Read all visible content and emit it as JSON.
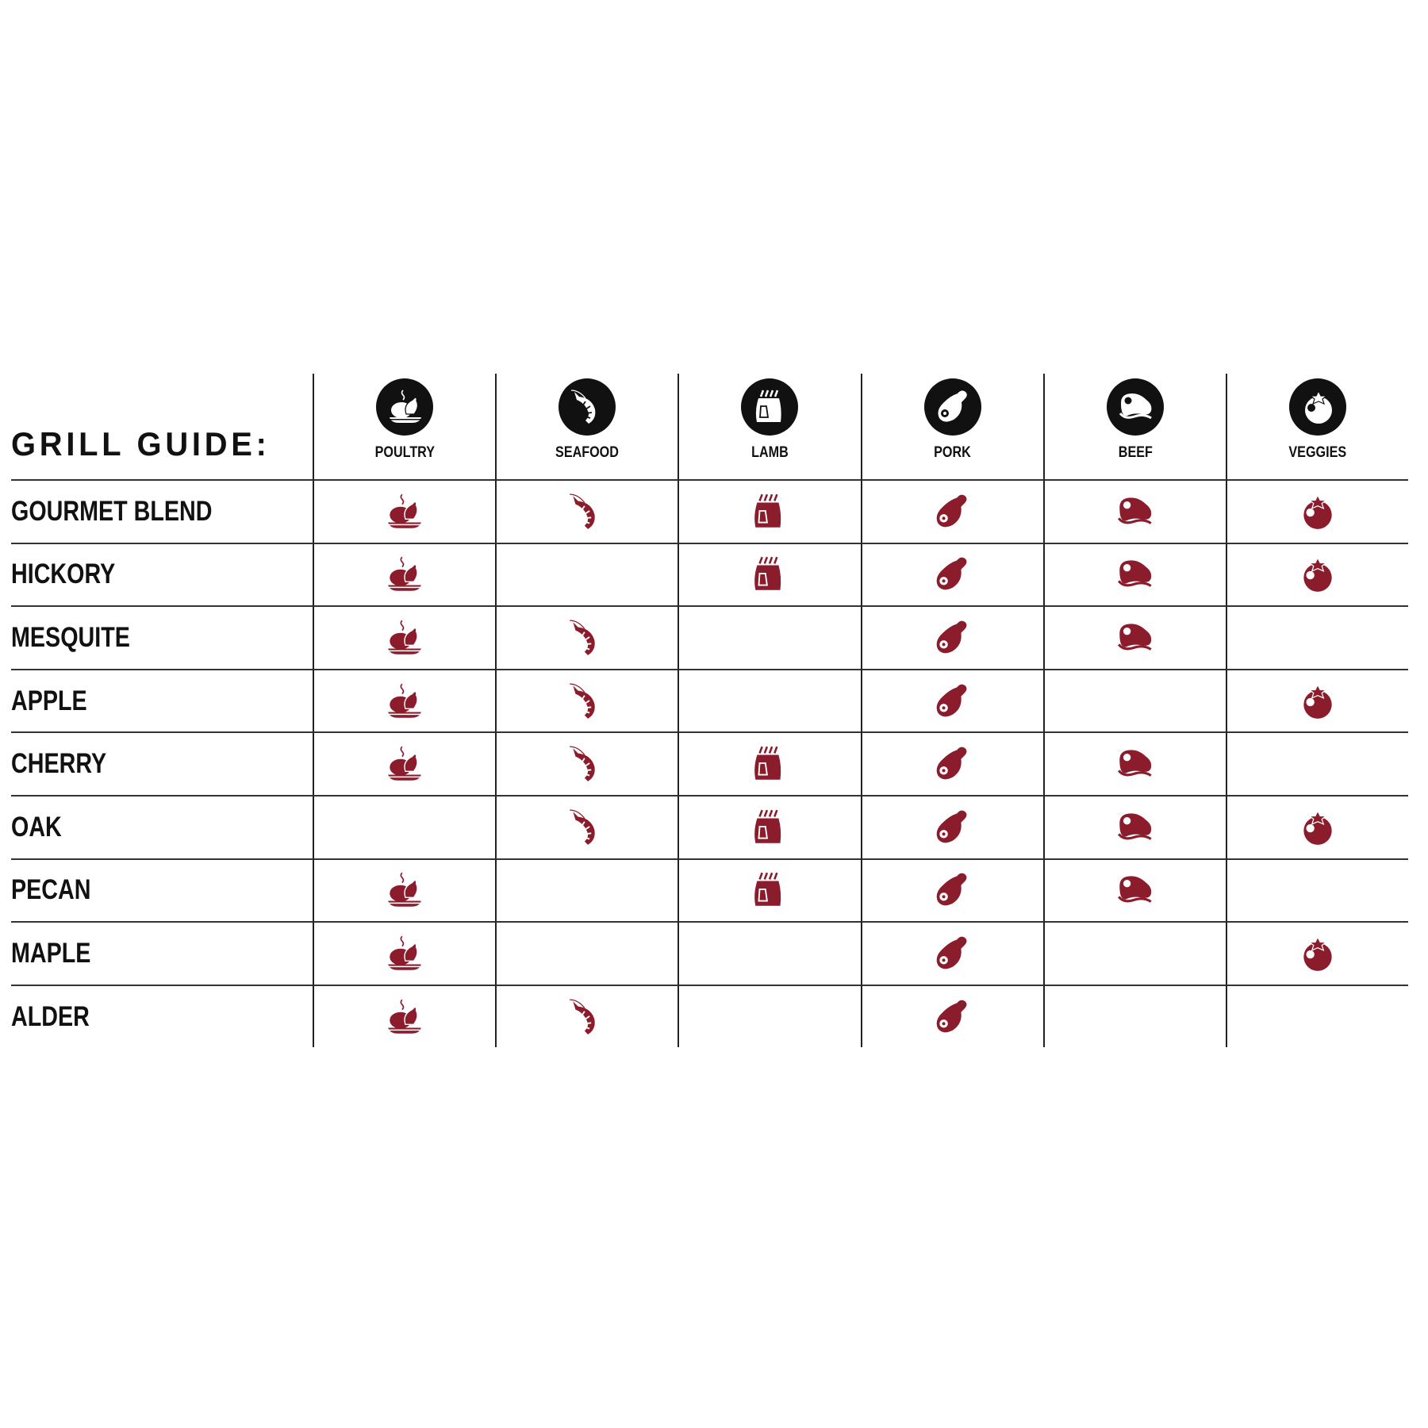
{
  "title": "GRILL GUIDE:",
  "accent_color": "#8b1c2c",
  "header_icon_color": "#111111",
  "columns": [
    {
      "label": "POULTRY",
      "icon": "roast-chicken-icon"
    },
    {
      "label": "SEAFOOD",
      "icon": "shrimp-icon"
    },
    {
      "label": "LAMB",
      "icon": "lamb-rack-icon"
    },
    {
      "label": "PORK",
      "icon": "ham-leg-icon"
    },
    {
      "label": "BEEF",
      "icon": "steak-icon"
    },
    {
      "label": "VEGGIES",
      "icon": "tomato-icon"
    }
  ],
  "rows": [
    {
      "label": "GOURMET BLEND",
      "marks": [
        true,
        true,
        true,
        true,
        true,
        true
      ]
    },
    {
      "label": "HICKORY",
      "marks": [
        true,
        false,
        true,
        true,
        true,
        true
      ]
    },
    {
      "label": "MESQUITE",
      "marks": [
        true,
        true,
        false,
        true,
        true,
        false
      ]
    },
    {
      "label": "APPLE",
      "marks": [
        true,
        true,
        false,
        true,
        false,
        true
      ]
    },
    {
      "label": "CHERRY",
      "marks": [
        true,
        true,
        true,
        true,
        true,
        false
      ]
    },
    {
      "label": "OAK",
      "marks": [
        false,
        true,
        true,
        true,
        true,
        true
      ]
    },
    {
      "label": "PECAN",
      "marks": [
        true,
        false,
        true,
        true,
        true,
        false
      ]
    },
    {
      "label": "MAPLE",
      "marks": [
        true,
        false,
        false,
        true,
        false,
        true
      ]
    },
    {
      "label": "ALDER",
      "marks": [
        true,
        true,
        false,
        true,
        false,
        false
      ]
    }
  ]
}
